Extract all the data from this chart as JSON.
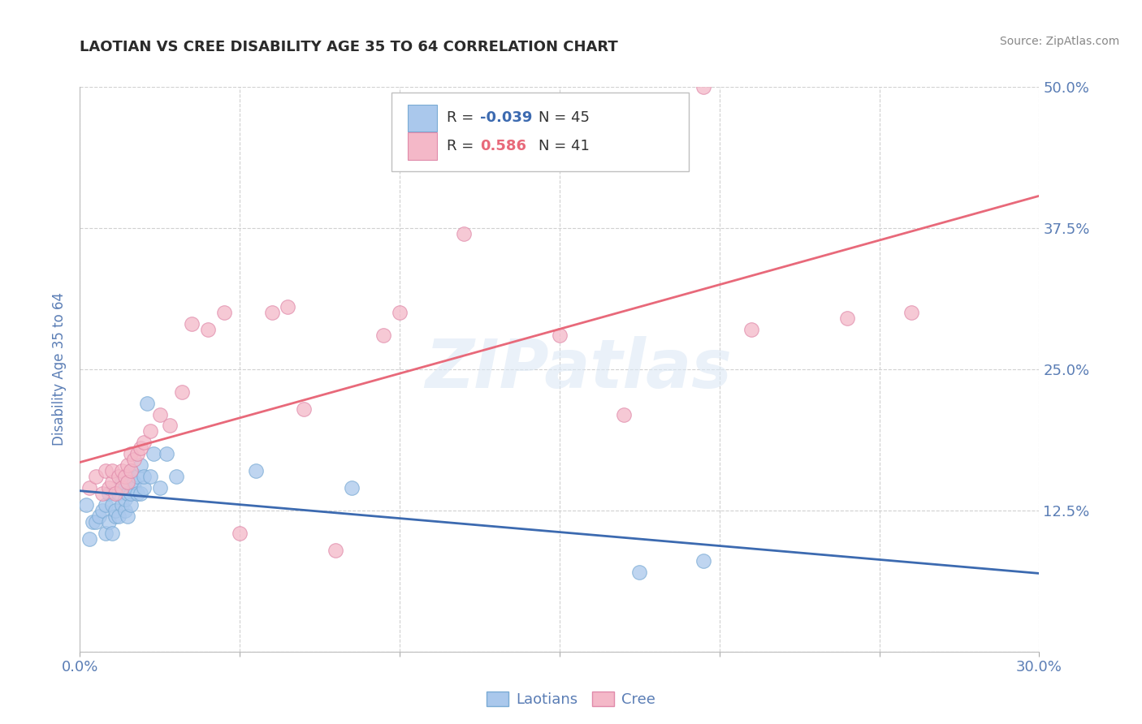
{
  "title": "LAOTIAN VS CREE DISABILITY AGE 35 TO 64 CORRELATION CHART",
  "source": "Source: ZipAtlas.com",
  "ylabel_label": "Disability Age 35 to 64",
  "xlim": [
    0.0,
    0.3
  ],
  "ylim": [
    0.0,
    0.5
  ],
  "xticks": [
    0.0,
    0.05,
    0.1,
    0.15,
    0.2,
    0.25,
    0.3
  ],
  "yticks": [
    0.0,
    0.125,
    0.25,
    0.375,
    0.5
  ],
  "yticklabels": [
    "",
    "12.5%",
    "25.0%",
    "37.5%",
    "50.0%"
  ],
  "grid_color": "#d0d0d0",
  "background_color": "#ffffff",
  "title_color": "#2b2b2b",
  "axis_color": "#5a7db5",
  "watermark": "ZIPatlas",
  "laotians_color": "#aac8ec",
  "laotians_edge": "#7aabd4",
  "cree_color": "#f4b8c8",
  "cree_edge": "#e08aaa",
  "line_lao_color": "#3c6ab0",
  "line_cree_color": "#e8697a",
  "laotians_R": -0.039,
  "laotians_N": 45,
  "cree_R": 0.586,
  "cree_N": 41,
  "laotians_x": [
    0.002,
    0.003,
    0.004,
    0.005,
    0.006,
    0.007,
    0.008,
    0.008,
    0.009,
    0.009,
    0.01,
    0.01,
    0.011,
    0.011,
    0.012,
    0.012,
    0.013,
    0.013,
    0.013,
    0.014,
    0.014,
    0.015,
    0.015,
    0.015,
    0.016,
    0.016,
    0.016,
    0.017,
    0.017,
    0.018,
    0.018,
    0.019,
    0.019,
    0.02,
    0.02,
    0.021,
    0.022,
    0.023,
    0.025,
    0.027,
    0.03,
    0.055,
    0.085,
    0.175,
    0.195
  ],
  "laotians_y": [
    0.13,
    0.1,
    0.115,
    0.115,
    0.12,
    0.125,
    0.105,
    0.13,
    0.115,
    0.14,
    0.105,
    0.13,
    0.12,
    0.125,
    0.12,
    0.14,
    0.13,
    0.145,
    0.15,
    0.125,
    0.135,
    0.12,
    0.14,
    0.155,
    0.13,
    0.14,
    0.16,
    0.145,
    0.15,
    0.14,
    0.155,
    0.14,
    0.165,
    0.145,
    0.155,
    0.22,
    0.155,
    0.175,
    0.145,
    0.175,
    0.155,
    0.16,
    0.145,
    0.07,
    0.08
  ],
  "cree_x": [
    0.003,
    0.005,
    0.007,
    0.008,
    0.009,
    0.01,
    0.01,
    0.011,
    0.012,
    0.013,
    0.013,
    0.014,
    0.015,
    0.015,
    0.016,
    0.016,
    0.017,
    0.018,
    0.019,
    0.02,
    0.022,
    0.025,
    0.028,
    0.032,
    0.035,
    0.04,
    0.045,
    0.05,
    0.06,
    0.065,
    0.07,
    0.08,
    0.095,
    0.1,
    0.12,
    0.15,
    0.17,
    0.195,
    0.21,
    0.24,
    0.26
  ],
  "cree_y": [
    0.145,
    0.155,
    0.14,
    0.16,
    0.145,
    0.15,
    0.16,
    0.14,
    0.155,
    0.145,
    0.16,
    0.155,
    0.15,
    0.165,
    0.16,
    0.175,
    0.17,
    0.175,
    0.18,
    0.185,
    0.195,
    0.21,
    0.2,
    0.23,
    0.29,
    0.285,
    0.3,
    0.105,
    0.3,
    0.305,
    0.215,
    0.09,
    0.28,
    0.3,
    0.37,
    0.28,
    0.21,
    0.5,
    0.285,
    0.295,
    0.3
  ]
}
